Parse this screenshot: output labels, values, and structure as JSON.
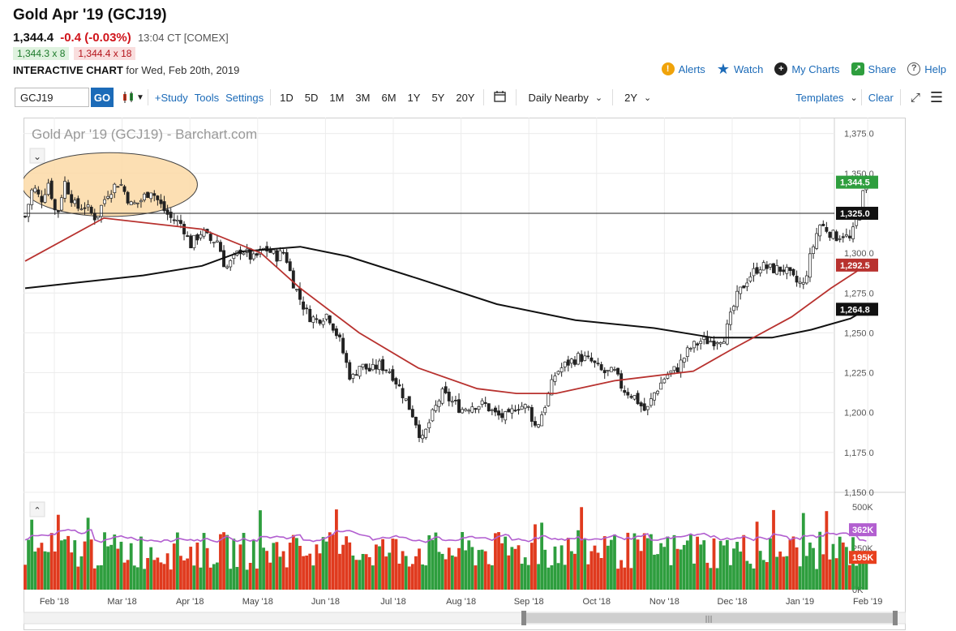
{
  "header": {
    "title": "Gold Apr '19 (GCJ19)",
    "last": "1,344.4",
    "change": "-0.4 (-0.03%)",
    "time": "13:04 CT [COMEX]",
    "bid": "1,344.3 x 8",
    "ask": "1,344.4 x 18",
    "interactive_label": "INTERACTIVE CHART",
    "interactive_date": "for Wed, Feb 20th, 2019"
  },
  "actions": [
    {
      "label": "Alerts",
      "icon": "alert-icon",
      "color": "#f0a30a"
    },
    {
      "label": "Watch",
      "icon": "star-icon",
      "color": "#1c6bb8"
    },
    {
      "label": "My Charts",
      "icon": "plus-circle-icon",
      "color": "#222222"
    },
    {
      "label": "Share",
      "icon": "share-icon",
      "color": "#2e9e3e"
    },
    {
      "label": "Help",
      "icon": "help-icon",
      "color": "#555555"
    }
  ],
  "toolbar": {
    "symbol": "GCJ19",
    "go": "GO",
    "study": "+Study",
    "tools": "Tools",
    "settings": "Settings",
    "ranges": [
      "1D",
      "5D",
      "1M",
      "3M",
      "6M",
      "1Y",
      "5Y",
      "20Y"
    ],
    "aggregation": "Daily Nearby",
    "period": "2Y",
    "templates": "Templates",
    "clear": "Clear"
  },
  "chart_data": {
    "type": "candlestick",
    "title": "Gold Apr '19 (GCJ19) - Barchart.com",
    "x_labels": [
      "Feb '18",
      "Mar '18",
      "Apr '18",
      "May '18",
      "Jun '18",
      "Jul '18",
      "Aug '18",
      "Sep '18",
      "Oct '18",
      "Nov '18",
      "Dec '18",
      "Jan '19",
      "Feb '19"
    ],
    "ylim": [
      1150,
      1385
    ],
    "y_ticks": [
      "1,375.0",
      "1,350.0",
      "1,325.0",
      "1,300.0",
      "1,275.0",
      "1,250.0",
      "1,225.0",
      "1,200.0",
      "1,175.0",
      "1,150.0"
    ],
    "price_path": [
      [
        0,
        1323
      ],
      [
        0.02,
        1342
      ],
      [
        0.04,
        1333
      ],
      [
        0.06,
        1345
      ],
      [
        0.08,
        1322
      ],
      [
        0.1,
        1345
      ],
      [
        0.13,
        1328
      ],
      [
        0.15,
        1330
      ],
      [
        0.18,
        1322
      ],
      [
        0.21,
        1338
      ],
      [
        0.24,
        1345
      ],
      [
        0.27,
        1330
      ],
      [
        0.29,
        1332
      ],
      [
        0.32,
        1340
      ],
      [
        0.35,
        1328
      ],
      [
        0.37,
        1322
      ],
      [
        0.4,
        1318
      ],
      [
        0.42,
        1305
      ],
      [
        0.45,
        1314
      ],
      [
        0.47,
        1308
      ],
      [
        0.49,
        1308
      ],
      [
        0.51,
        1290
      ],
      [
        0.53,
        1296
      ],
      [
        0.55,
        1303
      ],
      [
        0.58,
        1296
      ],
      [
        0.61,
        1303
      ],
      [
        0.64,
        1298
      ],
      [
        0.66,
        1301
      ],
      [
        0.68,
        1283
      ],
      [
        0.7,
        1271
      ],
      [
        0.72,
        1261
      ],
      [
        0.74,
        1258
      ],
      [
        0.77,
        1262
      ],
      [
        0.8,
        1245
      ],
      [
        0.83,
        1220
      ],
      [
        0.85,
        1230
      ],
      [
        0.88,
        1226
      ],
      [
        0.9,
        1230
      ],
      [
        0.93,
        1226
      ],
      [
        0.96,
        1212
      ],
      [
        0.99,
        1197
      ],
      [
        1.01,
        1182
      ],
      [
        1.03,
        1195
      ],
      [
        1.06,
        1212
      ],
      [
        1.08,
        1208
      ],
      [
        1.11,
        1202
      ],
      [
        1.14,
        1205
      ],
      [
        1.17,
        1205
      ],
      [
        1.2,
        1198
      ],
      [
        1.23,
        1197
      ],
      [
        1.25,
        1205
      ],
      [
        1.28,
        1203
      ],
      [
        1.3,
        1190
      ],
      [
        1.32,
        1203
      ],
      [
        1.35,
        1225
      ],
      [
        1.38,
        1231
      ],
      [
        1.41,
        1235
      ],
      [
        1.44,
        1232
      ],
      [
        1.47,
        1225
      ],
      [
        1.5,
        1225
      ],
      [
        1.52,
        1215
      ],
      [
        1.55,
        1210
      ],
      [
        1.58,
        1200
      ],
      [
        1.6,
        1212
      ],
      [
        1.63,
        1223
      ],
      [
        1.66,
        1228
      ],
      [
        1.69,
        1240
      ],
      [
        1.72,
        1245
      ],
      [
        1.75,
        1245
      ],
      [
        1.78,
        1248
      ],
      [
        1.81,
        1272
      ],
      [
        1.84,
        1285
      ],
      [
        1.87,
        1292
      ],
      [
        1.9,
        1290
      ],
      [
        1.93,
        1290
      ],
      [
        1.96,
        1282
      ],
      [
        1.98,
        1280
      ],
      [
        2.0,
        1300
      ],
      [
        2.02,
        1318
      ],
      [
        2.04,
        1315
      ],
      [
        2.06,
        1310
      ],
      [
        2.08,
        1312
      ],
      [
        2.1,
        1308
      ],
      [
        2.12,
        1325
      ],
      [
        2.14,
        1345
      ]
    ],
    "last_price": 1344.5,
    "horizontal_line": 1325.0,
    "ma_short_label": 1292.5,
    "ma_long_label": 1264.8,
    "ma_short_path": [
      [
        0,
        1295
      ],
      [
        0.2,
        1322
      ],
      [
        0.45,
        1315
      ],
      [
        0.6,
        1300
      ],
      [
        0.7,
        1278
      ],
      [
        0.85,
        1250
      ],
      [
        1.0,
        1228
      ],
      [
        1.15,
        1215
      ],
      [
        1.25,
        1212
      ],
      [
        1.35,
        1212
      ],
      [
        1.5,
        1220
      ],
      [
        1.7,
        1226
      ],
      [
        1.8,
        1240
      ],
      [
        1.95,
        1260
      ],
      [
        2.05,
        1278
      ],
      [
        2.14,
        1292.5
      ]
    ],
    "ma_long_path": [
      [
        0,
        1278
      ],
      [
        0.3,
        1286
      ],
      [
        0.45,
        1292
      ],
      [
        0.55,
        1301
      ],
      [
        0.7,
        1304
      ],
      [
        0.82,
        1298
      ],
      [
        1.0,
        1284
      ],
      [
        1.2,
        1268
      ],
      [
        1.4,
        1258
      ],
      [
        1.6,
        1253
      ],
      [
        1.75,
        1247
      ],
      [
        1.9,
        1247
      ],
      [
        2.0,
        1252
      ],
      [
        2.1,
        1259
      ],
      [
        2.14,
        1264.8
      ]
    ],
    "highlight_ellipse": {
      "x_from": 0.0,
      "x_to": 0.43,
      "y_center": 1343,
      "y_radius": 20
    },
    "volume": {
      "y_ticks": [
        "500K",
        "250K",
        "0K"
      ],
      "ylim": [
        0,
        500
      ],
      "avg_label": "362K",
      "last_label": "195K",
      "avg_colors": {
        "avg": "#b25fd0",
        "up": "#2e9e3e",
        "down": "#e8401e"
      }
    },
    "colors": {
      "up": "#2e9e3e",
      "down": "#e03a1e",
      "candle": "#222222",
      "ma_short": "#b8322f",
      "ma_long": "#111111",
      "ellipse_fill": "#fcd9a6",
      "last_bg": "#2e9e3e",
      "hline_bg": "#111111",
      "ma_short_bg": "#b8322f",
      "ma_long_bg": "#111111"
    }
  }
}
